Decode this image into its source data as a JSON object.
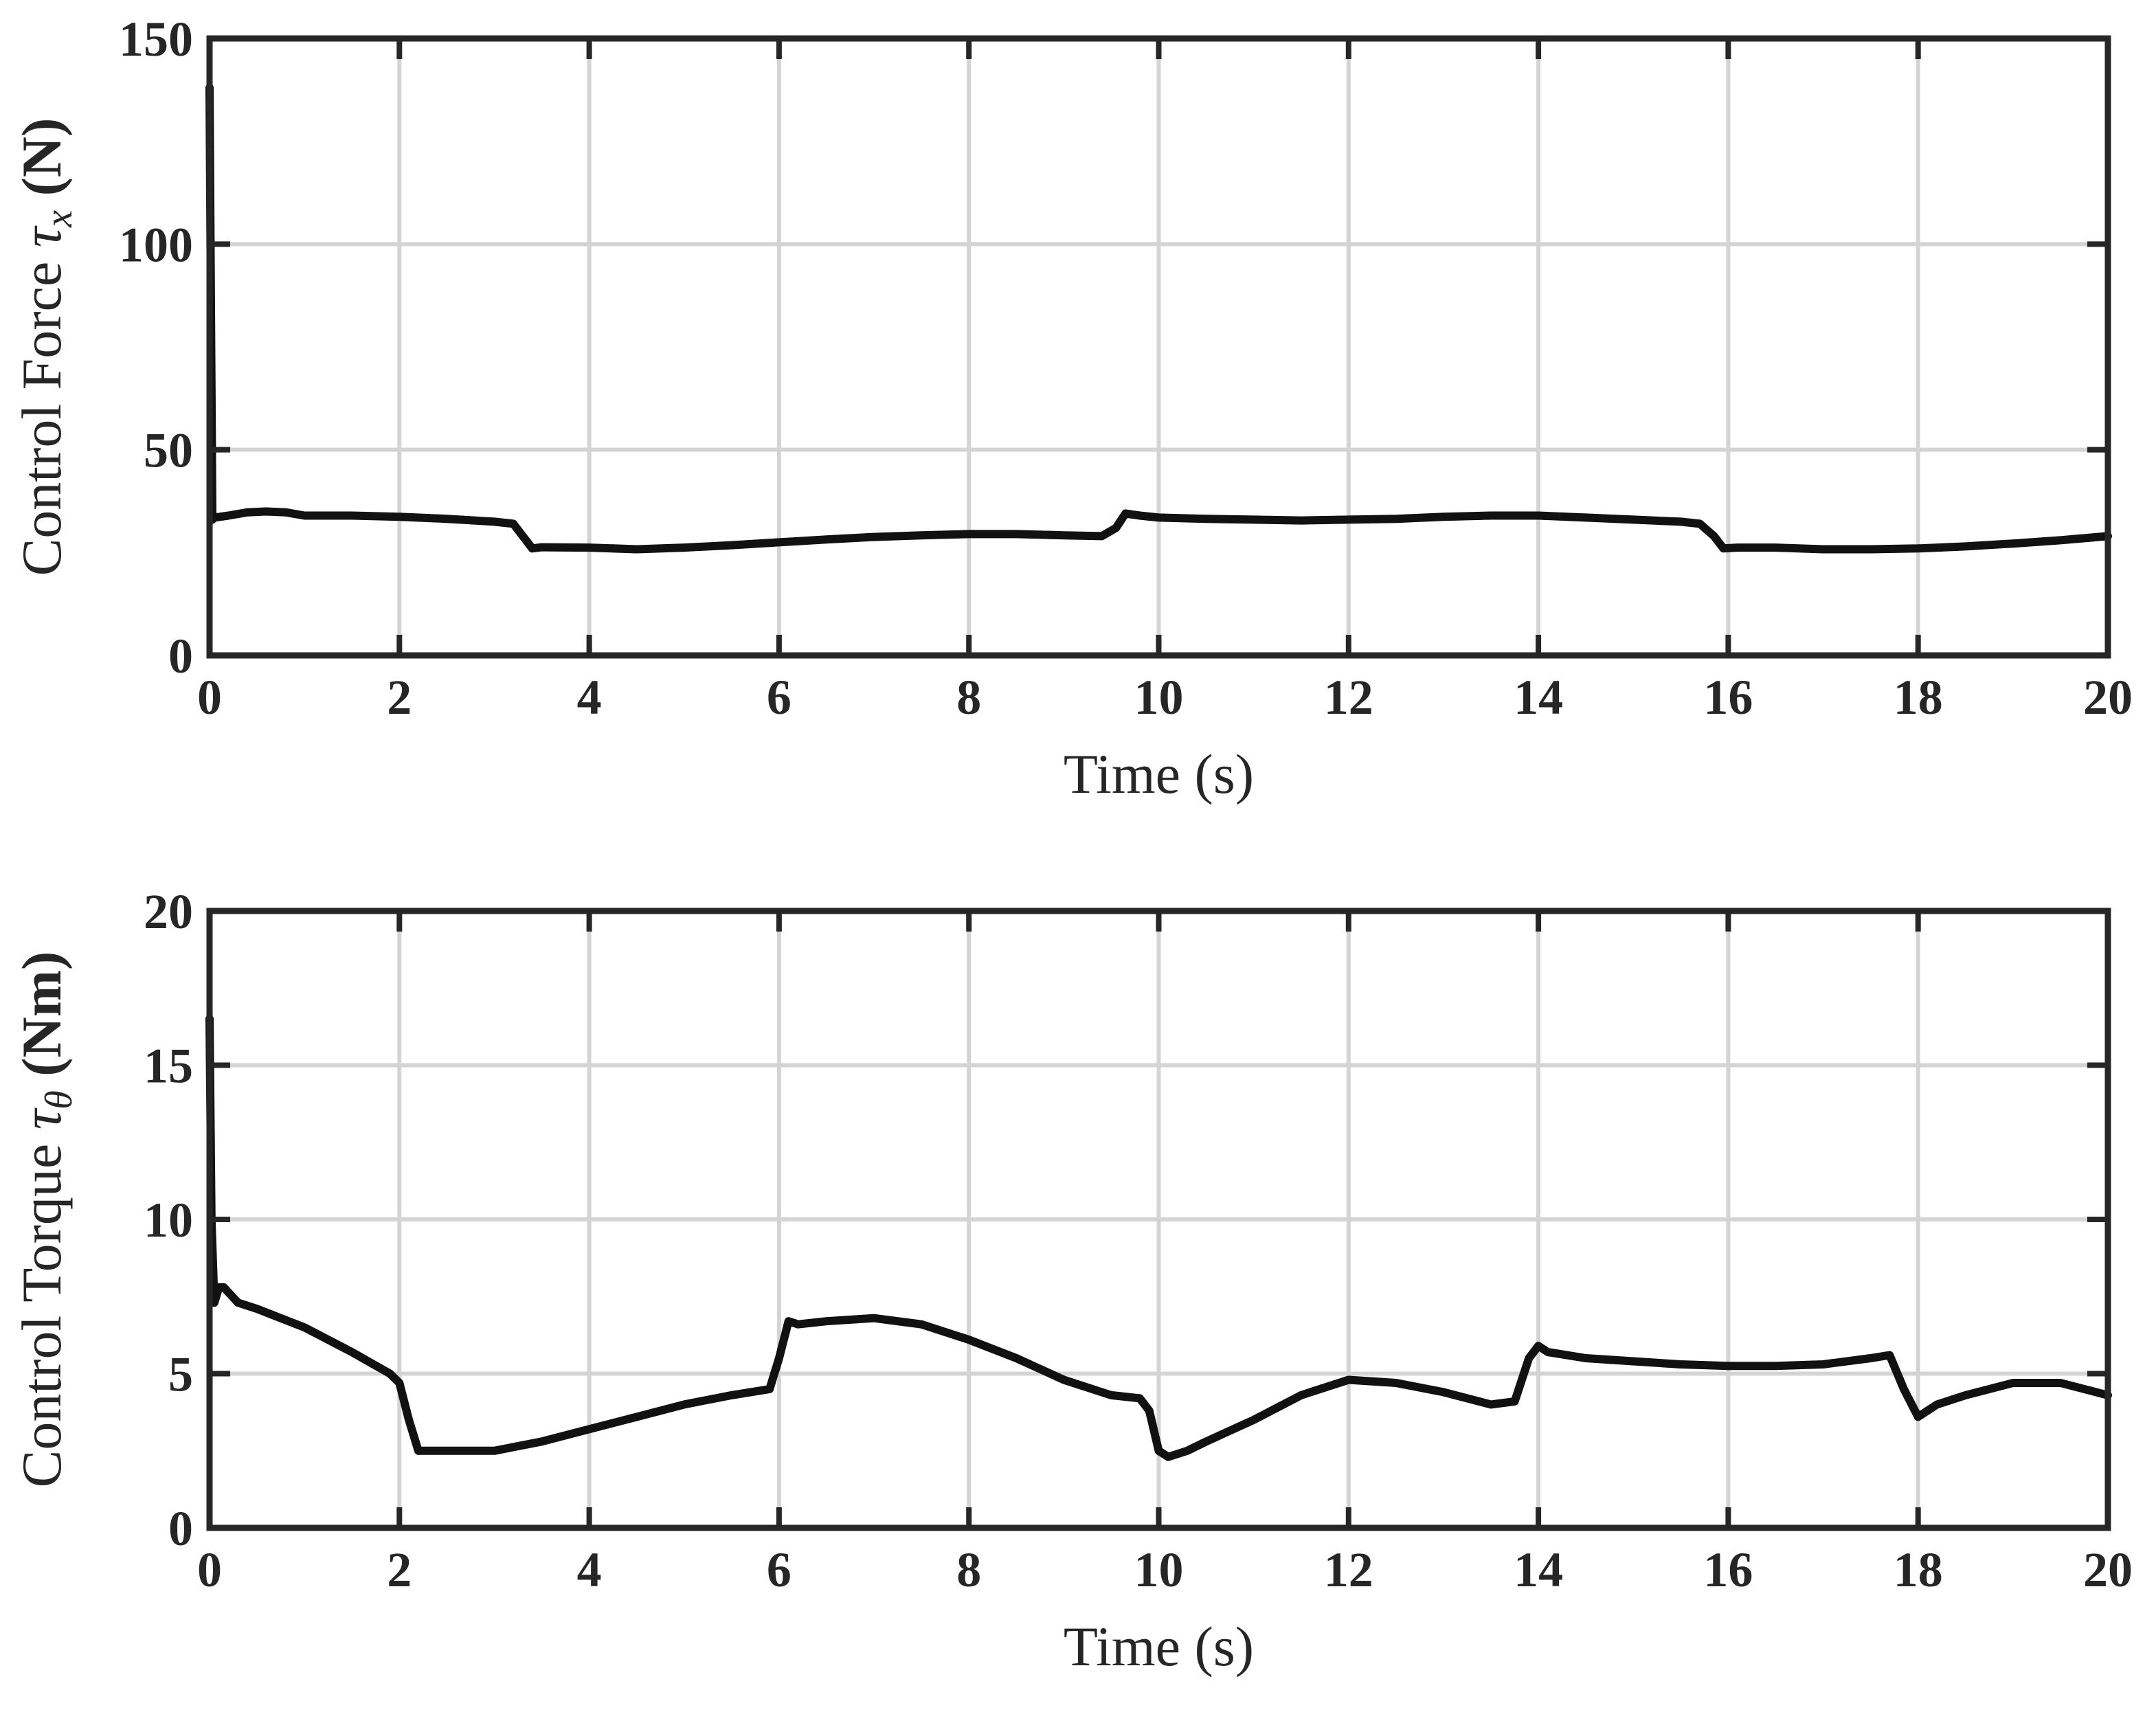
{
  "chart_data": [
    {
      "type": "line",
      "xlabel": "Time (s)",
      "ylabel": {
        "prefix": "Control Force ",
        "symbol": "τ",
        "sub": "x",
        "unit": " (N)"
      },
      "xlim": [
        0,
        20
      ],
      "ylim": [
        0,
        150
      ],
      "xticks": [
        "0",
        "2",
        "4",
        "6",
        "8",
        "10",
        "12",
        "14",
        "16",
        "18",
        "20"
      ],
      "yticks": [
        "0",
        "50",
        "100",
        "150"
      ],
      "grid": true,
      "series": [
        {
          "color": "#111111",
          "x": [
            0,
            0.01,
            0.03,
            0.05,
            0.2,
            0.4,
            0.6,
            0.8,
            1.0,
            1.5,
            2.0,
            2.5,
            3.0,
            3.2,
            3.3,
            3.4,
            3.5,
            4.0,
            4.5,
            5.0,
            5.5,
            6.0,
            6.5,
            7.0,
            7.5,
            8.0,
            8.5,
            9.0,
            9.4,
            9.55,
            9.65,
            9.8,
            10.0,
            10.5,
            11.0,
            11.5,
            12.0,
            12.5,
            13.0,
            13.5,
            14.0,
            14.5,
            15.0,
            15.5,
            15.7,
            15.85,
            15.95,
            16.1,
            16.5,
            17.0,
            17.5,
            18.0,
            18.5,
            19.0,
            19.5,
            20.0
          ],
          "y": [
            138,
            100,
            33,
            33.5,
            34,
            34.8,
            35,
            34.8,
            34,
            34,
            33.7,
            33.2,
            32.5,
            32,
            29,
            26,
            26.3,
            26.2,
            25.8,
            26.2,
            26.8,
            27.5,
            28.2,
            28.8,
            29.2,
            29.5,
            29.5,
            29.2,
            29,
            31,
            34.5,
            34,
            33.5,
            33.2,
            33,
            32.8,
            33,
            33.2,
            33.7,
            34,
            34,
            33.5,
            33,
            32.5,
            32,
            29,
            26,
            26.2,
            26.2,
            25.8,
            25.8,
            26,
            26.5,
            27.2,
            28,
            29
          ]
        }
      ]
    },
    {
      "type": "line",
      "xlabel": "Time (s)",
      "ylabel": {
        "prefix": "Control Torque ",
        "symbol": "τ",
        "sub": "θ",
        "unit": " (Nm)"
      },
      "xlim": [
        0,
        20
      ],
      "ylim": [
        0,
        20
      ],
      "xticks": [
        "0",
        "2",
        "4",
        "6",
        "8",
        "10",
        "12",
        "14",
        "16",
        "18",
        "20"
      ],
      "yticks": [
        "0",
        "5",
        "10",
        "15",
        "20"
      ],
      "grid": true,
      "series": [
        {
          "color": "#111111",
          "x": [
            0,
            0.02,
            0.05,
            0.1,
            0.15,
            0.3,
            0.5,
            1.0,
            1.5,
            1.9,
            2.0,
            2.1,
            2.2,
            2.3,
            2.5,
            3.0,
            3.5,
            4.0,
            4.5,
            5.0,
            5.5,
            5.9,
            6.0,
            6.1,
            6.2,
            6.5,
            7.0,
            7.5,
            8.0,
            8.5,
            9.0,
            9.5,
            9.8,
            9.9,
            10.0,
            10.1,
            10.3,
            10.5,
            11.0,
            11.5,
            12.0,
            12.5,
            13.0,
            13.5,
            13.75,
            13.9,
            14.0,
            14.1,
            14.5,
            15.0,
            15.5,
            16.0,
            16.5,
            17.0,
            17.5,
            17.7,
            17.85,
            18.0,
            18.2,
            18.5,
            19.0,
            19.5,
            20.0
          ],
          "y": [
            16.5,
            10,
            7.3,
            7.8,
            7.8,
            7.3,
            7.1,
            6.5,
            5.7,
            5.0,
            4.7,
            3.5,
            2.5,
            2.5,
            2.5,
            2.5,
            2.8,
            3.2,
            3.6,
            4.0,
            4.3,
            4.5,
            5.5,
            6.7,
            6.6,
            6.7,
            6.8,
            6.6,
            6.1,
            5.5,
            4.8,
            4.3,
            4.2,
            3.8,
            2.5,
            2.3,
            2.5,
            2.8,
            3.5,
            4.3,
            4.8,
            4.7,
            4.4,
            4.0,
            4.1,
            5.5,
            5.9,
            5.7,
            5.5,
            5.4,
            5.3,
            5.25,
            5.25,
            5.3,
            5.5,
            5.6,
            4.5,
            3.6,
            4.0,
            4.3,
            4.7,
            4.7,
            4.3
          ]
        }
      ]
    }
  ]
}
